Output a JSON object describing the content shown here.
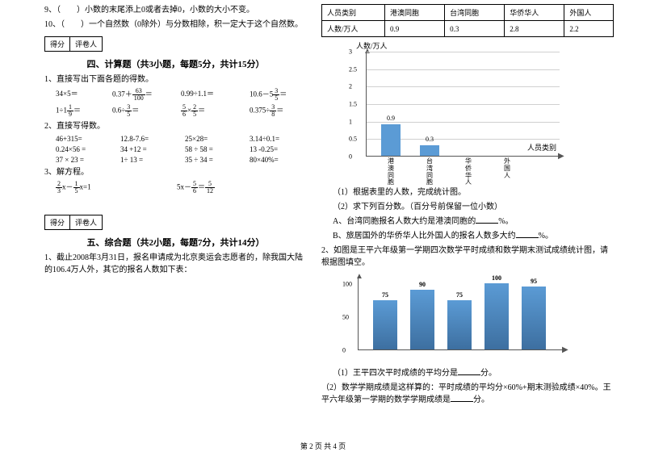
{
  "left": {
    "q9": "9、（　　）小数的末尾添上0或者去掉0，小数的大小不变。",
    "q10": "10、（　　）一个自然数（0除外）与分数相除，积一定大于这个自然数。",
    "score": {
      "c1": "得分",
      "c2": "评卷人"
    },
    "sec4_title": "四、计算题（共3小题，每题5分，共计15分）",
    "sec4_q1": "1、直接写出下面各题的得数。",
    "row1": {
      "a": "34×5＝",
      "b_pre": "0.37＋",
      "b_post": "＝",
      "c": "0.99÷1.1＝",
      "d_pre": "10.6－5",
      "d_post": "＝"
    },
    "row2": {
      "a_pre": "1÷1",
      "a_post": "＝",
      "b_pre": "0.6÷",
      "b_post": "＝",
      "c_mid": "×",
      "c_post": "＝",
      "d_pre": "0.375÷",
      "d_post": "＝"
    },
    "sec4_q2": "2、直接写得数。",
    "grid": [
      [
        "46+315=",
        "12.8-7.6=",
        "25×28=",
        "3.14÷0.1="
      ],
      [
        "0.24×56 =",
        "34 +12 =",
        "58 ÷ 58 =",
        "13 -0.25="
      ],
      [
        "37 × 23 =",
        "1÷ 13 =",
        "35 ÷ 34 =",
        "80×40%="
      ]
    ],
    "sec4_q3": "3、解方程。",
    "eq1_pre": "",
    "eq1_mid": "x－",
    "eq1_post": "x=1",
    "eq2_pre": "5x－",
    "eq2_mid": "＝",
    "sec5_title": "五、综合题（共2小题，每题7分，共计14分）",
    "sec5_q1": "1、截止2008年3月31日，报名申请成为北京奥运会志愿者的，除我国大陆的106.4万人外，其它的报名人数如下表："
  },
  "right": {
    "table": {
      "h1": "人员类别",
      "h2": "港澳同胞",
      "h3": "台湾同胞",
      "h4": "华侨华人",
      "h5": "外国人",
      "r1": "人数/万人",
      "v1": "0.9",
      "v2": "0.3",
      "v3": "2.8",
      "v4": "2.2"
    },
    "chart1": {
      "ylabel": "人数/万人",
      "ymax": 3,
      "yticks": [
        "0",
        "0.5",
        "1",
        "1.5",
        "2",
        "2.5",
        "3"
      ],
      "bars": [
        {
          "label": "港澳同胞",
          "value": 0.9,
          "show": true
        },
        {
          "label": "台湾同胞",
          "value": 0.3,
          "show": true
        },
        {
          "label": "华侨华人",
          "value": 0,
          "show": false
        },
        {
          "label": "外国人",
          "value": 0,
          "show": false
        }
      ],
      "bar_color": "#5b9bd5",
      "xlabel": "人员类别"
    },
    "q1_1": "（1）根据表里的人数，完成统计图。",
    "q1_2": "（2）求下列百分数。（百分号前保留一位小数）",
    "q1_2a": "A、台湾同胞报名人数大约是港澳同胞的",
    "q1_2a_end": "%。",
    "q1_2b": "B、旅居国外的华侨华人比外国人的报名人数多大约",
    "q1_2b_end": "%。",
    "q2": "2、如图是王平六年级第一学期四次数学平时成绩和数学期末测试成绩统计图，请根据图填空。",
    "chart2": {
      "yticks": [
        "0",
        "50",
        "100"
      ],
      "ymax": 110,
      "bars": [
        75,
        90,
        75,
        100,
        95
      ],
      "bar_color": "#5b9bd5"
    },
    "q2_1": "（1）王平四次平时成绩的平均分是",
    "q2_1_end": "分。",
    "q2_2": "（2）数学学期成绩是这样算的：平时成绩的平均分×60%+期末测验成绩×40%。王平六年级第一学期的数学学期成绩是",
    "q2_2_end": "分。"
  },
  "footer": "第 2 页 共 4 页"
}
